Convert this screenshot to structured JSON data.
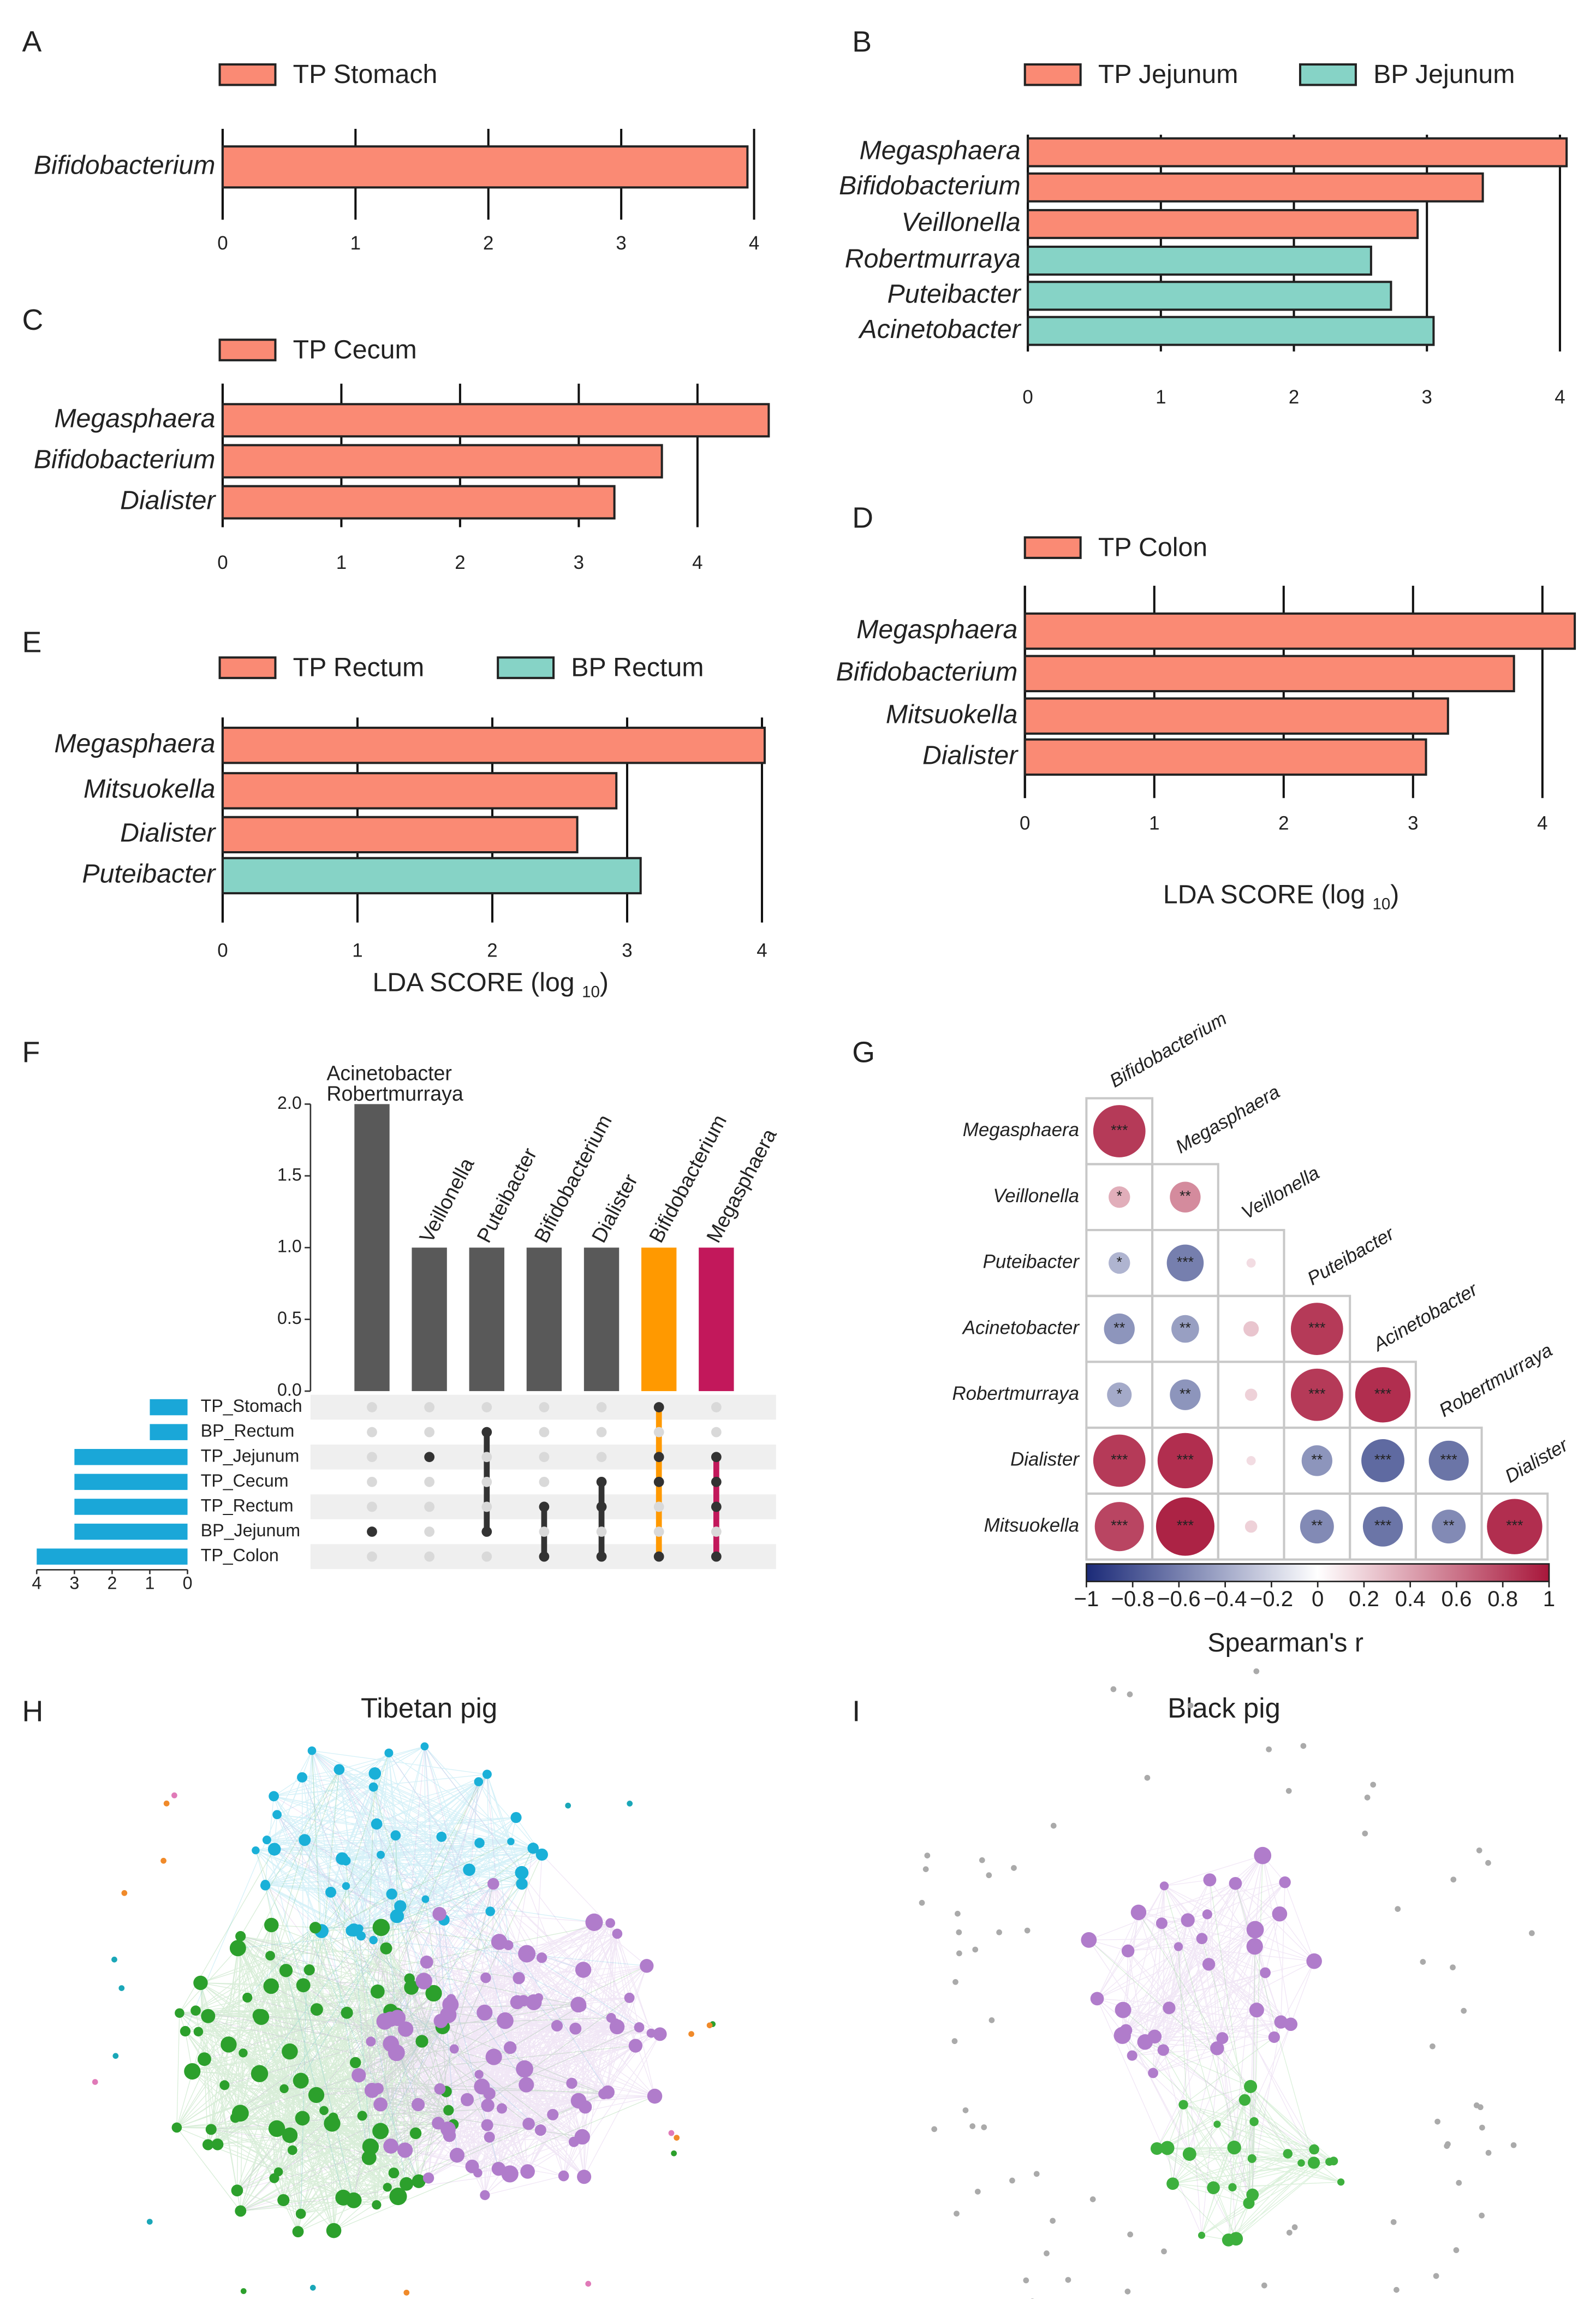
{
  "chart_data": [
    {
      "panel": "A",
      "type": "bar",
      "grid": true,
      "categories": [
        "Bifidobacterium"
      ],
      "series": [
        {
          "name": "TP Stomach",
          "color": "#fa8a74",
          "values": [
            3.95
          ]
        }
      ],
      "xlim": [
        0,
        4
      ],
      "xticks": [
        0,
        1,
        2,
        3,
        4
      ]
    },
    {
      "panel": "B",
      "type": "bar",
      "grid": true,
      "categories": [
        "Megasphaera",
        "Bifidobacterium",
        "Veillonella",
        "Robertmurraya",
        "Puteibacter",
        "Acinetobacter"
      ],
      "series": [
        {
          "name": "TP Jejunum",
          "color": "#fa8a74",
          "values": [
            4.05,
            3.42,
            2.93,
            null,
            null,
            null
          ]
        },
        {
          "name": "BP Jejunum",
          "color": "#86d3c6",
          "values": [
            null,
            null,
            null,
            2.58,
            2.73,
            3.05
          ]
        }
      ],
      "xlim": [
        0,
        4.05
      ],
      "xticks": [
        0,
        1,
        2,
        3,
        4
      ]
    },
    {
      "panel": "C",
      "type": "bar",
      "grid": true,
      "categories": [
        "Megasphaera",
        "Bifidobacterium",
        "Dialister"
      ],
      "series": [
        {
          "name": "TP Cecum",
          "color": "#fa8a74",
          "values": [
            4.6,
            3.7,
            3.3
          ]
        }
      ],
      "xlim": [
        0,
        4.6
      ],
      "xticks": [
        0,
        1,
        2,
        3,
        4
      ]
    },
    {
      "panel": "D",
      "type": "bar",
      "grid": true,
      "categories": [
        "Megasphaera",
        "Bifidobacterium",
        "Mitsuokella",
        "Dialister"
      ],
      "series": [
        {
          "name": "TP Colon",
          "color": "#fa8a74",
          "values": [
            4.25,
            3.78,
            3.27,
            3.1
          ]
        }
      ],
      "xlim": [
        0,
        4.3
      ],
      "xticks": [
        0,
        1,
        2,
        3,
        4
      ],
      "x_label": [
        "LDA SCORE (log ",
        "10",
        ")"
      ]
    },
    {
      "panel": "E",
      "type": "bar",
      "grid": true,
      "categories": [
        "Megasphaera",
        "Mitsuokella",
        "Dialister",
        "Puteibacter"
      ],
      "series": [
        {
          "name": "TP Rectum",
          "color": "#fa8a74",
          "values": [
            4.02,
            2.92,
            2.63,
            null
          ]
        },
        {
          "name": "BP Rectum",
          "color": "#86d3c6",
          "values": [
            null,
            null,
            null,
            3.1
          ]
        }
      ],
      "xlim": [
        0,
        4.05
      ],
      "xticks": [
        0,
        1,
        2,
        3,
        4
      ],
      "x_label": [
        "LDA SCORE (log ",
        "10",
        ")"
      ]
    },
    {
      "panel": "F",
      "type": "upset",
      "intersections": {
        "labels": [
          [
            "Acinetobacter",
            "Robertmurraya"
          ],
          [
            "Veillonella"
          ],
          [
            "Puteibacter"
          ],
          [
            "Bifidobacterium"
          ],
          [
            "Dialister"
          ],
          [
            "Bifidobacterium"
          ],
          [
            "Megasphaera"
          ]
        ],
        "values": [
          2,
          1,
          1,
          1,
          1,
          1,
          1
        ],
        "colors": [
          "#595959",
          "#595959",
          "#595959",
          "#595959",
          "#595959",
          "#ff9900",
          "#c2185b"
        ],
        "label_colors": [
          "#222222",
          "#222222",
          "#222222",
          "#222222",
          "#222222",
          "#ff0000",
          "#ff0000"
        ]
      },
      "ylim": [
        0,
        2.0
      ],
      "yticks": [
        {
          "value": 0,
          "label": "0.0"
        },
        {
          "value": 0.5,
          "label": "0.5"
        },
        {
          "value": 1,
          "label": "1.0"
        },
        {
          "value": 1.5,
          "label": "1.5"
        },
        {
          "value": 2,
          "label": "2.0"
        }
      ],
      "sets": {
        "names": [
          "TP_Stomach",
          "BP_Rectum",
          "TP_Jejunum",
          "TP_Cecum",
          "TP_Rectum",
          "BP_Jejunum",
          "TP_Colon"
        ],
        "sizes": [
          1,
          1,
          3,
          3,
          3,
          3,
          4
        ],
        "color": "#1aa7d8"
      },
      "set_xlim": [
        0,
        4
      ],
      "set_xticks": [
        0,
        1,
        2,
        3,
        4
      ],
      "matrix": [
        [
          0,
          0,
          0,
          0,
          0,
          1,
          0
        ],
        [
          0,
          0,
          1,
          0,
          0,
          0,
          0
        ],
        [
          0,
          1,
          0,
          0,
          0,
          1,
          1
        ],
        [
          0,
          0,
          0,
          0,
          1,
          1,
          1
        ],
        [
          0,
          0,
          0,
          1,
          1,
          0,
          1
        ],
        [
          1,
          0,
          1,
          0,
          0,
          0,
          0
        ],
        [
          0,
          0,
          0,
          1,
          1,
          1,
          1
        ]
      ]
    },
    {
      "panel": "G",
      "type": "correlation",
      "rows": [
        "Megasphaera",
        "Veillonella",
        "Puteibacter",
        "Acinetobacter",
        "Robertmurraya",
        "Dialister",
        "Mitsuokella"
      ],
      "columns": [
        "Bifidobacterium",
        "Megasphaera",
        "Veillonella",
        "Puteibacter",
        "Acinetobacter",
        "Robertmurraya",
        "Dialister"
      ],
      "values": [
        [
          0.85
        ],
        [
          0.35,
          0.5
        ],
        [
          -0.35,
          -0.6,
          0.15
        ],
        [
          -0.5,
          -0.45,
          0.25,
          0.85
        ],
        [
          -0.4,
          -0.5,
          0.2,
          0.85,
          0.9
        ],
        [
          0.85,
          0.9,
          0.15,
          -0.5,
          -0.7,
          -0.65
        ],
        [
          0.8,
          0.95,
          0.2,
          -0.55,
          -0.65,
          -0.55,
          0.9
        ]
      ],
      "stars": [
        [
          "***"
        ],
        [
          "*",
          "**"
        ],
        [
          "*",
          "***",
          null
        ],
        [
          "**",
          "**",
          null,
          "***"
        ],
        [
          "*",
          "**",
          null,
          "***",
          "***"
        ],
        [
          "***",
          "***",
          null,
          "**",
          "***",
          "***"
        ],
        [
          "***",
          "***",
          null,
          "**",
          "***",
          "**",
          "***"
        ]
      ],
      "colormap": [
        "#1b2a78",
        "#ffffff",
        "#a8173b"
      ],
      "clim": [
        -1,
        1
      ],
      "cticks": [
        {
          "value": -1,
          "label": "−1"
        },
        {
          "value": -0.8,
          "label": "−0.8"
        },
        {
          "value": -0.6,
          "label": "−0.6"
        },
        {
          "value": -0.4,
          "label": "−0.4"
        },
        {
          "value": -0.2,
          "label": "−0.2"
        },
        0,
        0.2,
        0.4,
        0.6,
        0.8,
        1
      ],
      "colorbar_label": "Spearman's r"
    },
    {
      "panel": "H",
      "type": "network",
      "title": "Tibetan pig",
      "colors": [
        "#1ab0d8",
        "#2ca02c",
        "#b07ccb"
      ]
    },
    {
      "panel": "I",
      "type": "network",
      "title": "Black pig",
      "colors": [
        "#b07ccb",
        "#3db03d",
        "#aaaaaa"
      ]
    }
  ]
}
